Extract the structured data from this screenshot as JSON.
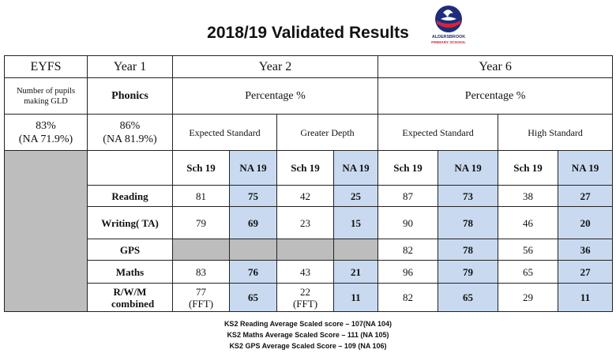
{
  "title": "2018/19 Validated Results",
  "logo": {
    "text": "ALDERSBROOK PRIMARY SCHOOL"
  },
  "header": {
    "eyfs": "EYFS",
    "year1": "Year 1",
    "year2": "Year 2",
    "year6": "Year 6"
  },
  "subheader": {
    "eyfs": "Number of pupils making GLD",
    "year1": "Phonics",
    "year2": "Percentage %",
    "year6": "Percentage %"
  },
  "row3": {
    "eyfs_value": "83%",
    "eyfs_na": "(NA 71.9%)",
    "year1_value": "86%",
    "year1_na": "(NA 81.9%)",
    "y2_expected": "Expected Standard",
    "y2_greater": "Greater Depth",
    "y6_expected": "Expected Standard",
    "y6_high": "High Standard"
  },
  "columns": [
    "Sch 19",
    "NA 19",
    "Sch 19",
    "NA 19",
    "Sch 19",
    "NA 19",
    "Sch 19",
    "NA 19"
  ],
  "rows": [
    {
      "label": "Reading",
      "values": [
        "81",
        "75",
        "42",
        "25",
        "87",
        "73",
        "38",
        "27"
      ]
    },
    {
      "label": "Writing( TA)",
      "values": [
        "79",
        "69",
        "23",
        "15",
        "90",
        "78",
        "46",
        "20"
      ]
    },
    {
      "label": "GPS",
      "values": [
        "",
        "",
        "",
        "",
        "82",
        "78",
        "56",
        "36"
      ]
    },
    {
      "label": "Maths",
      "values": [
        "83",
        "76",
        "43",
        "21",
        "96",
        "79",
        "65",
        "27"
      ]
    },
    {
      "label": "R/W/M combined",
      "values": [
        "77 (FFT)",
        "65",
        "22 (FFT)",
        "11",
        "82",
        "65",
        "29",
        "11"
      ]
    }
  ],
  "footer": [
    "KS2 Reading Average Scaled score – 107(NA 104)",
    "KS2 Maths Average Scaled Score – 111 (NA 105)",
    "KS2 GPS Average Scaled Score – 109 (NA 106)"
  ]
}
